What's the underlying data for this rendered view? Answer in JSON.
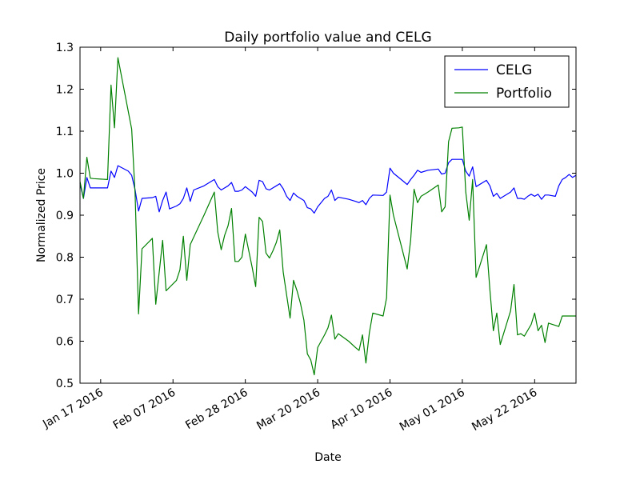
{
  "chart_data": {
    "type": "line",
    "title": "Daily portfolio value and CELG",
    "xlabel": "Date",
    "ylabel": "Normalized Price",
    "xlim": [
      "2016-01-11",
      "2016-06-03"
    ],
    "ylim": [
      0.5,
      1.3
    ],
    "y_ticks": [
      "0.5",
      "0.6",
      "0.7",
      "0.8",
      "0.9",
      "1.0",
      "1.1",
      "1.2",
      "1.3"
    ],
    "x_ticks": [
      {
        "date": "2016-01-17",
        "label": "Jan 17 2016"
      },
      {
        "date": "2016-02-07",
        "label": "Feb 07 2016"
      },
      {
        "date": "2016-02-28",
        "label": "Feb 28 2016"
      },
      {
        "date": "2016-03-20",
        "label": "Mar 20 2016"
      },
      {
        "date": "2016-04-10",
        "label": "Apr 10 2016"
      },
      {
        "date": "2016-05-01",
        "label": "May 01 2016"
      },
      {
        "date": "2016-05-22",
        "label": "May 22 2016"
      }
    ],
    "grid": false,
    "legend_position": "top-right",
    "series": [
      {
        "name": "CELG",
        "color": "#0000ff",
        "points": [
          [
            "2016-01-11",
            0.975
          ],
          [
            "2016-01-12",
            0.94
          ],
          [
            "2016-01-13",
            0.99
          ],
          [
            "2016-01-14",
            0.965
          ],
          [
            "2016-01-15",
            0.965
          ],
          [
            "2016-01-19",
            0.965
          ],
          [
            "2016-01-20",
            1.005
          ],
          [
            "2016-01-21",
            0.99
          ],
          [
            "2016-01-22",
            1.018
          ],
          [
            "2016-01-25",
            1.005
          ],
          [
            "2016-01-26",
            0.995
          ],
          [
            "2016-01-27",
            0.96
          ],
          [
            "2016-01-28",
            0.91
          ],
          [
            "2016-01-29",
            0.94
          ],
          [
            "2016-02-01",
            0.942
          ],
          [
            "2016-02-02",
            0.945
          ],
          [
            "2016-02-03",
            0.908
          ],
          [
            "2016-02-04",
            0.935
          ],
          [
            "2016-02-05",
            0.955
          ],
          [
            "2016-02-06",
            0.915
          ],
          [
            "2016-02-08",
            0.922
          ],
          [
            "2016-02-09",
            0.927
          ],
          [
            "2016-02-10",
            0.94
          ],
          [
            "2016-02-11",
            0.965
          ],
          [
            "2016-02-12",
            0.933
          ],
          [
            "2016-02-13",
            0.96
          ],
          [
            "2016-02-16",
            0.97
          ],
          [
            "2016-02-19",
            0.985
          ],
          [
            "2016-02-20",
            0.968
          ],
          [
            "2016-02-21",
            0.96
          ],
          [
            "2016-02-22",
            0.965
          ],
          [
            "2016-02-23",
            0.97
          ],
          [
            "2016-02-24",
            0.978
          ],
          [
            "2016-02-25",
            0.957
          ],
          [
            "2016-02-26",
            0.957
          ],
          [
            "2016-02-27",
            0.96
          ],
          [
            "2016-02-28",
            0.968
          ],
          [
            "2016-03-01",
            0.955
          ],
          [
            "2016-03-02",
            0.945
          ],
          [
            "2016-03-03",
            0.983
          ],
          [
            "2016-03-04",
            0.98
          ],
          [
            "2016-03-05",
            0.963
          ],
          [
            "2016-03-06",
            0.96
          ],
          [
            "2016-03-07",
            0.965
          ],
          [
            "2016-03-08",
            0.97
          ],
          [
            "2016-03-09",
            0.975
          ],
          [
            "2016-03-10",
            0.963
          ],
          [
            "2016-03-11",
            0.945
          ],
          [
            "2016-03-12",
            0.935
          ],
          [
            "2016-03-13",
            0.953
          ],
          [
            "2016-03-14",
            0.945
          ],
          [
            "2016-03-15",
            0.94
          ],
          [
            "2016-03-16",
            0.935
          ],
          [
            "2016-03-17",
            0.918
          ],
          [
            "2016-03-18",
            0.915
          ],
          [
            "2016-03-19",
            0.905
          ],
          [
            "2016-03-20",
            0.92
          ],
          [
            "2016-03-21",
            0.93
          ],
          [
            "2016-03-22",
            0.94
          ],
          [
            "2016-03-23",
            0.945
          ],
          [
            "2016-03-24",
            0.96
          ],
          [
            "2016-03-25",
            0.935
          ],
          [
            "2016-03-26",
            0.943
          ],
          [
            "2016-03-29",
            0.938
          ],
          [
            "2016-03-31",
            0.933
          ],
          [
            "2016-04-01",
            0.93
          ],
          [
            "2016-04-02",
            0.935
          ],
          [
            "2016-04-03",
            0.925
          ],
          [
            "2016-04-04",
            0.94
          ],
          [
            "2016-04-05",
            0.948
          ],
          [
            "2016-04-08",
            0.947
          ],
          [
            "2016-04-09",
            0.955
          ],
          [
            "2016-04-10",
            1.012
          ],
          [
            "2016-04-11",
            1.0
          ],
          [
            "2016-04-14",
            0.98
          ],
          [
            "2016-04-15",
            0.973
          ],
          [
            "2016-04-16",
            0.985
          ],
          [
            "2016-04-17",
            0.995
          ],
          [
            "2016-04-18",
            1.007
          ],
          [
            "2016-04-19",
            1.002
          ],
          [
            "2016-04-21",
            1.007
          ],
          [
            "2016-04-24",
            1.01
          ],
          [
            "2016-04-25",
            0.998
          ],
          [
            "2016-04-26",
            1.0
          ],
          [
            "2016-04-27",
            1.025
          ],
          [
            "2016-04-28",
            1.033
          ],
          [
            "2016-04-29",
            1.033
          ],
          [
            "2016-04-30",
            1.033
          ],
          [
            "2016-05-01",
            1.033
          ],
          [
            "2016-05-02",
            1.005
          ],
          [
            "2016-05-03",
            0.993
          ],
          [
            "2016-05-04",
            1.015
          ],
          [
            "2016-05-05",
            0.968
          ],
          [
            "2016-05-08",
            0.983
          ],
          [
            "2016-05-09",
            0.97
          ],
          [
            "2016-05-10",
            0.945
          ],
          [
            "2016-05-11",
            0.952
          ],
          [
            "2016-05-12",
            0.94
          ],
          [
            "2016-05-15",
            0.955
          ],
          [
            "2016-05-16",
            0.965
          ],
          [
            "2016-05-17",
            0.94
          ],
          [
            "2016-05-18",
            0.94
          ],
          [
            "2016-05-19",
            0.938
          ],
          [
            "2016-05-20",
            0.945
          ],
          [
            "2016-05-21",
            0.95
          ],
          [
            "2016-05-22",
            0.945
          ],
          [
            "2016-05-23",
            0.95
          ],
          [
            "2016-05-24",
            0.938
          ],
          [
            "2016-05-25",
            0.948
          ],
          [
            "2016-05-26",
            0.948
          ],
          [
            "2016-05-28",
            0.945
          ],
          [
            "2016-05-29",
            0.97
          ],
          [
            "2016-05-30",
            0.985
          ],
          [
            "2016-05-31",
            0.99
          ],
          [
            "2016-06-01",
            0.997
          ],
          [
            "2016-06-02",
            0.99
          ],
          [
            "2016-06-03",
            0.995
          ]
        ]
      },
      {
        "name": "Portfolio",
        "color": "#008000",
        "points": [
          [
            "2016-01-11",
            0.98
          ],
          [
            "2016-01-12",
            0.94
          ],
          [
            "2016-01-13",
            1.038
          ],
          [
            "2016-01-14",
            0.988
          ],
          [
            "2016-01-15",
            0.987
          ],
          [
            "2016-01-19",
            0.985
          ],
          [
            "2016-01-20",
            1.21
          ],
          [
            "2016-01-21",
            1.108
          ],
          [
            "2016-01-22",
            1.275
          ],
          [
            "2016-01-26",
            1.105
          ],
          [
            "2016-01-27",
            0.95
          ],
          [
            "2016-01-28",
            0.665
          ],
          [
            "2016-01-29",
            0.82
          ],
          [
            "2016-02-01",
            0.845
          ],
          [
            "2016-02-02",
            0.688
          ],
          [
            "2016-02-04",
            0.84
          ],
          [
            "2016-02-05",
            0.72
          ],
          [
            "2016-02-08",
            0.745
          ],
          [
            "2016-02-09",
            0.77
          ],
          [
            "2016-02-10",
            0.85
          ],
          [
            "2016-02-11",
            0.745
          ],
          [
            "2016-02-12",
            0.83
          ],
          [
            "2016-02-16",
            0.9
          ],
          [
            "2016-02-19",
            0.955
          ],
          [
            "2016-02-20",
            0.86
          ],
          [
            "2016-02-21",
            0.818
          ],
          [
            "2016-02-22",
            0.852
          ],
          [
            "2016-02-23",
            0.875
          ],
          [
            "2016-02-24",
            0.916
          ],
          [
            "2016-02-25",
            0.79
          ],
          [
            "2016-02-26",
            0.79
          ],
          [
            "2016-02-27",
            0.8
          ],
          [
            "2016-02-28",
            0.855
          ],
          [
            "2016-03-01",
            0.775
          ],
          [
            "2016-03-02",
            0.73
          ],
          [
            "2016-03-03",
            0.895
          ],
          [
            "2016-03-04",
            0.885
          ],
          [
            "2016-03-05",
            0.81
          ],
          [
            "2016-03-06",
            0.798
          ],
          [
            "2016-03-07",
            0.815
          ],
          [
            "2016-03-08",
            0.835
          ],
          [
            "2016-03-09",
            0.865
          ],
          [
            "2016-03-10",
            0.765
          ],
          [
            "2016-03-11",
            0.71
          ],
          [
            "2016-03-12",
            0.655
          ],
          [
            "2016-03-13",
            0.745
          ],
          [
            "2016-03-14",
            0.72
          ],
          [
            "2016-03-15",
            0.69
          ],
          [
            "2016-03-16",
            0.65
          ],
          [
            "2016-03-17",
            0.57
          ],
          [
            "2016-03-18",
            0.555
          ],
          [
            "2016-03-19",
            0.52
          ],
          [
            "2016-03-20",
            0.585
          ],
          [
            "2016-03-21",
            0.6
          ],
          [
            "2016-03-22",
            0.615
          ],
          [
            "2016-03-23",
            0.632
          ],
          [
            "2016-03-24",
            0.662
          ],
          [
            "2016-03-25",
            0.605
          ],
          [
            "2016-03-26",
            0.618
          ],
          [
            "2016-03-29",
            0.6
          ],
          [
            "2016-03-31",
            0.585
          ],
          [
            "2016-04-01",
            0.578
          ],
          [
            "2016-04-02",
            0.615
          ],
          [
            "2016-04-03",
            0.548
          ],
          [
            "2016-04-04",
            0.62
          ],
          [
            "2016-04-05",
            0.667
          ],
          [
            "2016-04-08",
            0.66
          ],
          [
            "2016-04-09",
            0.703
          ],
          [
            "2016-04-10",
            0.948
          ],
          [
            "2016-04-11",
            0.9
          ],
          [
            "2016-04-15",
            0.772
          ],
          [
            "2016-04-16",
            0.84
          ],
          [
            "2016-04-17",
            0.962
          ],
          [
            "2016-04-18",
            0.93
          ],
          [
            "2016-04-19",
            0.945
          ],
          [
            "2016-04-21",
            0.955
          ],
          [
            "2016-04-24",
            0.972
          ],
          [
            "2016-04-25",
            0.908
          ],
          [
            "2016-04-26",
            0.92
          ],
          [
            "2016-04-27",
            1.075
          ],
          [
            "2016-04-28",
            1.107
          ],
          [
            "2016-04-30",
            1.108
          ],
          [
            "2016-05-01",
            1.11
          ],
          [
            "2016-05-02",
            0.955
          ],
          [
            "2016-05-03",
            0.888
          ],
          [
            "2016-05-04",
            0.985
          ],
          [
            "2016-05-05",
            0.752
          ],
          [
            "2016-05-08",
            0.83
          ],
          [
            "2016-05-09",
            0.722
          ],
          [
            "2016-05-10",
            0.625
          ],
          [
            "2016-05-11",
            0.667
          ],
          [
            "2016-05-12",
            0.592
          ],
          [
            "2016-05-15",
            0.672
          ],
          [
            "2016-05-16",
            0.735
          ],
          [
            "2016-05-17",
            0.615
          ],
          [
            "2016-05-18",
            0.618
          ],
          [
            "2016-05-19",
            0.612
          ],
          [
            "2016-05-21",
            0.64
          ],
          [
            "2016-05-22",
            0.667
          ],
          [
            "2016-05-23",
            0.625
          ],
          [
            "2016-05-24",
            0.638
          ],
          [
            "2016-05-25",
            0.597
          ],
          [
            "2016-05-26",
            0.643
          ],
          [
            "2016-05-29",
            0.635
          ],
          [
            "2016-05-30",
            0.66
          ],
          [
            "2016-06-03",
            0.66
          ]
        ]
      }
    ]
  }
}
